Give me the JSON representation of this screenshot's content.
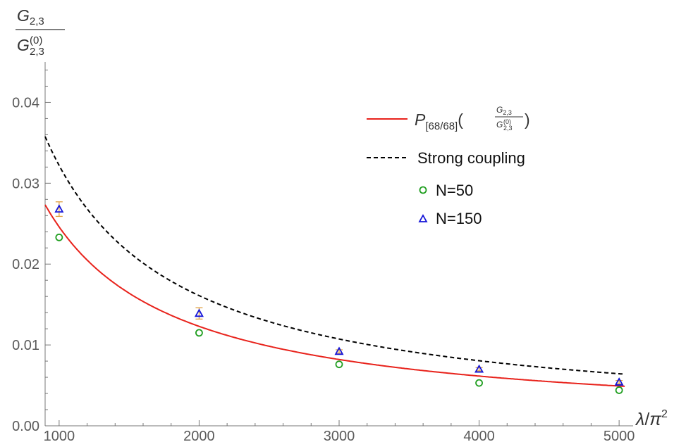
{
  "chart_data": {
    "type": "line",
    "xlabel": {
      "lambda": "λ",
      "slash": "/",
      "pi": "π",
      "exp": "2"
    },
    "ylabel": {
      "num_base": "G",
      "num_sub": "2,3",
      "den_base": "G",
      "den_sub": "2,3",
      "den_sup": "(0)"
    },
    "xlim": [
      900,
      5100
    ],
    "ylim": [
      0,
      0.045
    ],
    "x_ticks": [
      1000,
      2000,
      3000,
      4000,
      5000
    ],
    "x_tick_labels": [
      "1000",
      "2000",
      "3000",
      "4000",
      "5000"
    ],
    "y_ticks": [
      0,
      0.01,
      0.02,
      0.03,
      0.04
    ],
    "y_tick_labels": [
      "0.00",
      "0.01",
      "0.02",
      "0.03",
      "0.04"
    ],
    "series": [
      {
        "kind": "curve",
        "style": "solid",
        "color": "#e8221b",
        "model": "pade",
        "coef": 24.6,
        "legend": {
          "base": "P",
          "sub": "[68/68]",
          "frac_num_base": "G",
          "frac_num_sub": "2,3",
          "frac_den_base": "G",
          "frac_den_sub": "2,3",
          "frac_den_sup": "(0)",
          "open": "(",
          "close": ")"
        }
      },
      {
        "kind": "curve",
        "style": "dashed",
        "color": "#000000",
        "model": "strong",
        "coef": 32.2,
        "legend": {
          "text": "Strong coupling"
        }
      },
      {
        "kind": "points",
        "marker": "circle",
        "color": "#1f9e1f",
        "legend": {
          "text": "N=50"
        },
        "points": [
          {
            "x": 1000,
            "y": 0.0233
          },
          {
            "x": 2000,
            "y": 0.0115
          },
          {
            "x": 3000,
            "y": 0.0076
          },
          {
            "x": 4000,
            "y": 0.0053
          },
          {
            "x": 5000,
            "y": 0.0044
          }
        ]
      },
      {
        "kind": "points",
        "marker": "triangle",
        "color": "#1414d8",
        "error_color": "#e0a040",
        "legend": {
          "text": "N=150"
        },
        "points": [
          {
            "x": 1000,
            "y": 0.0268,
            "err": 0.0009
          },
          {
            "x": 2000,
            "y": 0.0139,
            "err": 0.0007
          },
          {
            "x": 3000,
            "y": 0.0092,
            "err": 0.0002
          },
          {
            "x": 4000,
            "y": 0.007,
            "err": 0.0002
          },
          {
            "x": 5000,
            "y": 0.0054,
            "err": 0.0002
          }
        ]
      }
    ],
    "legend_position": "top-right",
    "grid": false
  }
}
